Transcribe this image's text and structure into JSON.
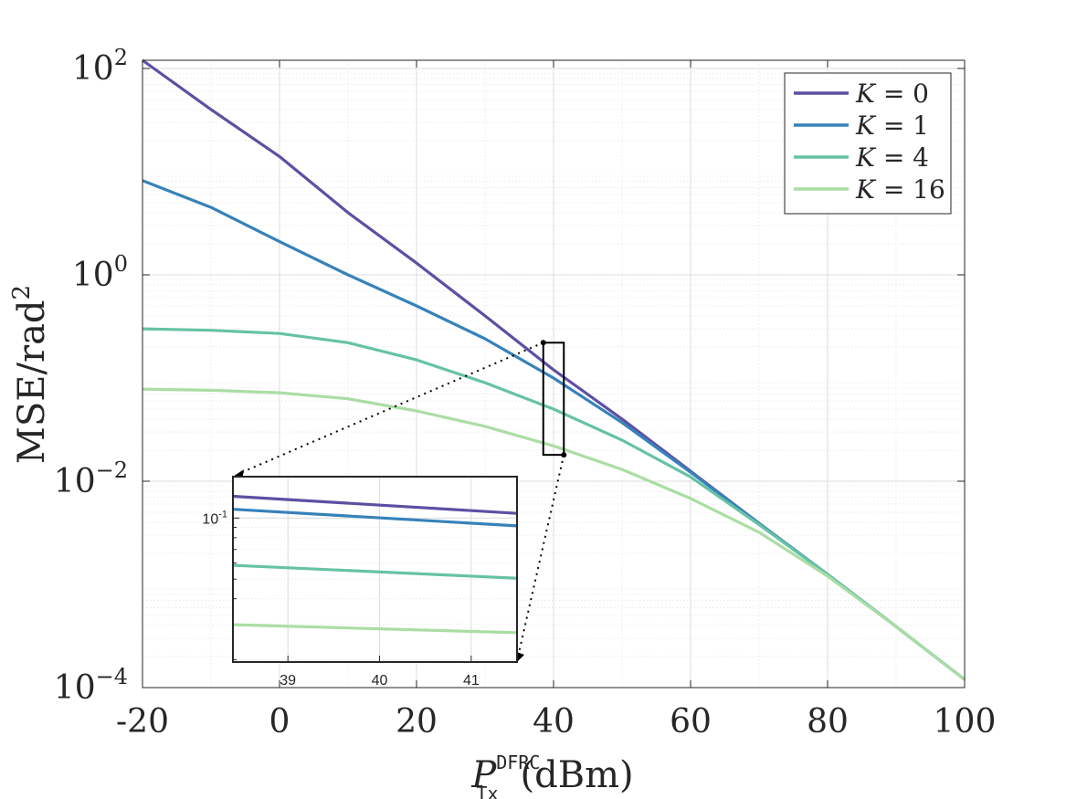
{
  "chart_data": {
    "type": "line",
    "scale": {
      "x": "linear",
      "y": "log10"
    },
    "xlim": [
      -20,
      100
    ],
    "ylim": [
      0.0001,
      120
    ],
    "x_ticks": [
      -20,
      0,
      20,
      40,
      60,
      80,
      100
    ],
    "x_tick_labels": [
      "-20",
      "0",
      "20",
      "40",
      "60",
      "80",
      "100"
    ],
    "y_ticks": [
      0.0001,
      0.01,
      1,
      100
    ],
    "y_tick_labels": [
      {
        "base": "10",
        "exp": "−4"
      },
      {
        "base": "10",
        "exp": "−2"
      },
      {
        "base": "10",
        "exp": "0"
      },
      {
        "base": "10",
        "exp": "2"
      }
    ],
    "xlabel": {
      "symbol": "P",
      "sub": "Tx",
      "sup": "DFRC",
      "unit": "(dBm)"
    },
    "ylabel": {
      "text": "MSE/rad",
      "sup": "2"
    },
    "grid": true,
    "minor_grid": true,
    "legend_position": "top-right",
    "series": [
      {
        "name": "K = 0",
        "var": "K",
        "value": "0",
        "color": "#5e4fa2",
        "x": [
          -20,
          -10,
          0,
          10,
          20,
          30,
          40,
          50,
          60,
          70,
          80,
          90,
          100
        ],
        "y": [
          120,
          40,
          14,
          4.0,
          1.3,
          0.4,
          0.12,
          0.04,
          0.0125,
          0.0039,
          0.00125,
          0.00039,
          0.00012
        ]
      },
      {
        "name": "K = 1",
        "var": "K",
        "value": "1",
        "color": "#3682ba",
        "x": [
          -20,
          -10,
          0,
          10,
          20,
          30,
          40,
          50,
          60,
          70,
          80,
          90,
          100
        ],
        "y": [
          8.2,
          4.5,
          2.1,
          1.0,
          0.5,
          0.24,
          0.1,
          0.037,
          0.0122,
          0.0039,
          0.00125,
          0.00039,
          0.00012
        ]
      },
      {
        "name": "K = 4",
        "var": "K",
        "value": "4",
        "color": "#66c2a5",
        "x": [
          -20,
          -10,
          0,
          10,
          20,
          30,
          40,
          50,
          60,
          70,
          80,
          90,
          100
        ],
        "y": [
          0.3,
          0.29,
          0.27,
          0.22,
          0.15,
          0.09,
          0.05,
          0.025,
          0.011,
          0.0038,
          0.00125,
          0.00039,
          0.00012
        ]
      },
      {
        "name": "K = 16",
        "var": "K",
        "value": "16",
        "color": "#abdda4",
        "x": [
          -20,
          -10,
          0,
          10,
          20,
          30,
          40,
          50,
          60,
          70,
          80,
          90,
          100
        ],
        "y": [
          0.078,
          0.076,
          0.072,
          0.063,
          0.048,
          0.034,
          0.022,
          0.013,
          0.0068,
          0.0032,
          0.0012,
          0.00039,
          0.00012
        ]
      }
    ],
    "zoom_window": {
      "x_range": [
        38.5,
        41.5
      ],
      "y_range": [
        0.018,
        0.22
      ]
    },
    "inset": {
      "x_ticks": [
        39,
        40,
        41
      ],
      "x_tick_labels": [
        "39",
        "40",
        "41"
      ],
      "xlim": [
        38.4,
        41.5
      ],
      "ylim": [
        0.0195,
        0.16
      ],
      "y_ticks": [
        0.1
      ],
      "y_tick_labels": [
        {
          "base": "10",
          "exp": "-1"
        }
      ],
      "series_y_at_xlim": [
        [
          0.128,
          0.1055
        ],
        [
          0.1105,
          0.0915
        ],
        [
          0.0585,
          0.0505
        ],
        [
          0.0298,
          0.0272
        ]
      ]
    }
  }
}
